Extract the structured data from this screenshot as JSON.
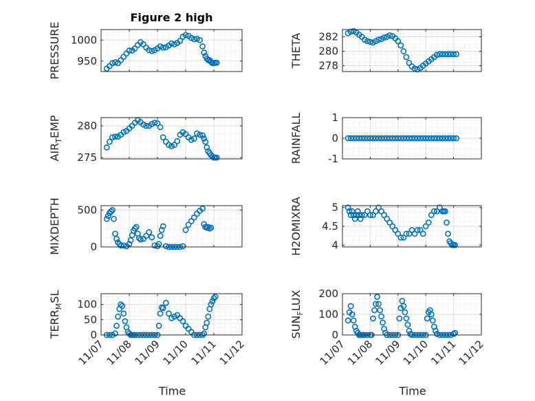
{
  "chart_data": {
    "type": "scatter",
    "title": "Figure 2 high",
    "xlabel": "Time",
    "x_ticks": [
      "11/07",
      "11/08",
      "11/09",
      "11/10",
      "11/11",
      "11/12"
    ],
    "marker": "open-circle",
    "marker_color": "#0072BD",
    "grid": true,
    "minor_grid": true,
    "panels": [
      {
        "id": "pressure",
        "ylabel": "PRESSURE",
        "ylim": [
          925,
          1025
        ],
        "yticks": [
          950,
          1000
        ],
        "yticklabels": [
          "950",
          "1000"
        ],
        "x": [
          0.2,
          0.3,
          0.4,
          0.5,
          0.6,
          0.7,
          0.8,
          0.9,
          1.0,
          1.1,
          1.2,
          1.3,
          1.4,
          1.5,
          1.6,
          1.7,
          1.8,
          1.9,
          2.0,
          2.1,
          2.2,
          2.3,
          2.4,
          2.5,
          2.6,
          2.7,
          2.8,
          2.9,
          3.0,
          3.1,
          3.2,
          3.3,
          3.4,
          3.5,
          3.6,
          3.65,
          3.7,
          3.75,
          3.8,
          3.85,
          3.9,
          3.95,
          4.0,
          4.05,
          4.1
        ],
        "y": [
          932,
          938,
          945,
          947,
          945,
          952,
          960,
          968,
          975,
          975,
          980,
          988,
          995,
          990,
          982,
          976,
          974,
          976,
          980,
          985,
          982,
          983,
          987,
          992,
          990,
          993,
          998,
          1008,
          1012,
          1010,
          1005,
          1002,
          1003,
          1000,
          985,
          970,
          962,
          956,
          952,
          952,
          948,
          945,
          945,
          946,
          946
        ]
      },
      {
        "id": "theta",
        "ylabel": "THETA",
        "ylim": [
          277.2,
          283.0
        ],
        "yticks": [
          278,
          280,
          282
        ],
        "yticklabels": [
          "278",
          "280",
          "282"
        ],
        "x": [
          0.2,
          0.3,
          0.4,
          0.5,
          0.6,
          0.7,
          0.8,
          0.9,
          1.0,
          1.1,
          1.2,
          1.3,
          1.4,
          1.5,
          1.6,
          1.7,
          1.8,
          1.9,
          2.0,
          2.1,
          2.2,
          2.3,
          2.4,
          2.5,
          2.6,
          2.7,
          2.8,
          2.9,
          3.0,
          3.1,
          3.2,
          3.3,
          3.4,
          3.5,
          3.6,
          3.7,
          3.8,
          3.9,
          4.0,
          4.1
        ],
        "y": [
          282.5,
          282.7,
          282.8,
          282.6,
          282.3,
          282.0,
          281.6,
          281.4,
          281.3,
          281.2,
          281.4,
          281.6,
          281.7,
          281.9,
          282.0,
          282.2,
          282.1,
          281.8,
          281.4,
          280.8,
          280.0,
          279.2,
          278.4,
          277.9,
          277.6,
          277.5,
          277.7,
          278.0,
          278.3,
          278.6,
          278.9,
          279.2,
          279.5,
          279.6,
          279.6,
          279.6,
          279.6,
          279.6,
          279.6,
          279.6
        ]
      },
      {
        "id": "air_temp",
        "ylabel": "AIR",
        "ylabel_sub": "T",
        "ylabel_rest": "EMP",
        "ylim": [
          274.8,
          281.3
        ],
        "yticks": [
          275,
          280
        ],
        "yticklabels": [
          "275",
          "280"
        ],
        "x": [
          0.2,
          0.3,
          0.4,
          0.5,
          0.6,
          0.7,
          0.8,
          0.9,
          1.0,
          1.1,
          1.2,
          1.3,
          1.4,
          1.5,
          1.6,
          1.7,
          1.8,
          1.9,
          2.0,
          2.1,
          2.2,
          2.3,
          2.4,
          2.5,
          2.6,
          2.7,
          2.8,
          2.9,
          3.0,
          3.1,
          3.2,
          3.3,
          3.4,
          3.5,
          3.6,
          3.65,
          3.7,
          3.75,
          3.8,
          3.85,
          3.9,
          3.95,
          4.0,
          4.05,
          4.1
        ],
        "y": [
          276.6,
          277.5,
          278.2,
          278.3,
          278.3,
          278.6,
          279.0,
          279.2,
          279.6,
          280.0,
          280.5,
          280.9,
          280.6,
          280.2,
          280.0,
          280.0,
          280.3,
          280.5,
          280.4,
          279.8,
          278.2,
          277.5,
          277.0,
          276.8,
          277.0,
          277.6,
          278.6,
          279.0,
          278.7,
          278.2,
          277.8,
          278.0,
          278.8,
          278.6,
          278.5,
          278.0,
          277.5,
          276.6,
          276.0,
          275.7,
          275.4,
          275.2,
          275.0,
          275.0,
          275.0
        ]
      },
      {
        "id": "rainfall",
        "ylabel": "RAINFALL",
        "ylim": [
          -1,
          1
        ],
        "yticks": [
          -1,
          0,
          1
        ],
        "yticklabels": [
          "-1",
          "0",
          "1"
        ],
        "x": [
          0.2,
          0.3,
          0.4,
          0.5,
          0.6,
          0.7,
          0.8,
          0.9,
          1.0,
          1.1,
          1.2,
          1.3,
          1.4,
          1.5,
          1.6,
          1.7,
          1.8,
          1.9,
          2.0,
          2.1,
          2.2,
          2.3,
          2.4,
          2.5,
          2.6,
          2.7,
          2.8,
          2.9,
          3.0,
          3.1,
          3.2,
          3.3,
          3.4,
          3.5,
          3.6,
          3.7,
          3.8,
          3.9,
          4.0,
          4.1
        ],
        "y": [
          0,
          0,
          0,
          0,
          0,
          0,
          0,
          0,
          0,
          0,
          0,
          0,
          0,
          0,
          0,
          0,
          0,
          0,
          0,
          0,
          0,
          0,
          0,
          0,
          0,
          0,
          0,
          0,
          0,
          0,
          0,
          0,
          0,
          0,
          0,
          0,
          0,
          0,
          0,
          0
        ]
      },
      {
        "id": "mixdepth",
        "ylabel": "MIXDEPTH",
        "ylim": [
          0,
          560
        ],
        "yticks": [
          0,
          500
        ],
        "yticklabels": [
          "0",
          "500"
        ],
        "x": [
          0.2,
          0.25,
          0.3,
          0.35,
          0.4,
          0.45,
          0.5,
          0.55,
          0.6,
          0.65,
          0.7,
          0.8,
          0.9,
          1.0,
          1.05,
          1.1,
          1.15,
          1.2,
          1.25,
          1.3,
          1.35,
          1.4,
          1.5,
          1.6,
          1.7,
          1.8,
          1.9,
          2.0,
          2.05,
          2.1,
          2.15,
          2.2,
          2.3,
          2.4,
          2.5,
          2.6,
          2.7,
          2.8,
          2.9,
          3.0,
          3.1,
          3.2,
          3.3,
          3.4,
          3.5,
          3.6,
          3.65,
          3.7,
          3.75,
          3.8,
          3.85,
          3.9
        ],
        "y": [
          380,
          420,
          460,
          480,
          500,
          380,
          180,
          110,
          60,
          40,
          20,
          20,
          10,
          40,
          90,
          160,
          220,
          250,
          270,
          180,
          120,
          100,
          110,
          150,
          200,
          130,
          20,
          10,
          40,
          150,
          230,
          280,
          10,
          0,
          0,
          0,
          0,
          0,
          10,
          230,
          300,
          350,
          400,
          450,
          490,
          520,
          310,
          270,
          260,
          270,
          250,
          260
        ]
      },
      {
        "id": "h2omixra",
        "ylabel": "H2OMIXRA",
        "ylim": [
          3.95,
          5.05
        ],
        "yticks": [
          4,
          4.5,
          5
        ],
        "yticklabels": [
          "4",
          "4.5",
          "5"
        ],
        "x": [
          0.2,
          0.25,
          0.3,
          0.35,
          0.4,
          0.45,
          0.5,
          0.55,
          0.6,
          0.65,
          0.7,
          0.8,
          0.9,
          1.0,
          1.1,
          1.2,
          1.3,
          1.4,
          1.5,
          1.6,
          1.7,
          1.8,
          1.9,
          2.0,
          2.1,
          2.2,
          2.3,
          2.4,
          2.5,
          2.6,
          2.7,
          2.8,
          2.9,
          3.0,
          3.1,
          3.2,
          3.3,
          3.4,
          3.5,
          3.6,
          3.65,
          3.7,
          3.75,
          3.8,
          3.85,
          3.9,
          3.95,
          4.0,
          4.05
        ],
        "y": [
          5.0,
          4.9,
          4.8,
          4.9,
          4.8,
          4.7,
          4.8,
          4.9,
          4.8,
          4.7,
          4.8,
          4.8,
          4.9,
          4.8,
          4.8,
          4.9,
          5.0,
          4.9,
          4.8,
          4.7,
          4.6,
          4.5,
          4.4,
          4.3,
          4.2,
          4.2,
          4.3,
          4.3,
          4.4,
          4.3,
          4.4,
          4.4,
          4.3,
          4.5,
          4.6,
          4.8,
          4.9,
          4.9,
          5.0,
          4.9,
          4.9,
          4.9,
          4.6,
          4.3,
          4.1,
          4.05,
          4.0,
          4.0,
          4.0
        ]
      },
      {
        "id": "terr_msl",
        "ylabel": "TERR",
        "ylabel_sub": "M",
        "ylabel_rest": "SL",
        "ylim": [
          0,
          135
        ],
        "yticks": [
          0,
          50,
          100
        ],
        "yticklabels": [
          "0",
          "50",
          "100"
        ],
        "x": [
          0.2,
          0.3,
          0.4,
          0.5,
          0.55,
          0.6,
          0.65,
          0.7,
          0.75,
          0.8,
          0.85,
          0.9,
          0.95,
          1.0,
          1.05,
          1.1,
          1.15,
          1.2,
          1.3,
          1.4,
          1.5,
          1.6,
          1.7,
          1.8,
          1.9,
          2.0,
          2.05,
          2.1,
          2.15,
          2.2,
          2.3,
          2.4,
          2.5,
          2.6,
          2.7,
          2.8,
          2.9,
          3.0,
          3.1,
          3.2,
          3.3,
          3.4,
          3.5,
          3.6,
          3.65,
          3.7,
          3.75,
          3.8,
          3.85,
          3.9,
          3.95,
          4.0,
          4.05
        ],
        "y": [
          0,
          0,
          0,
          5,
          30,
          60,
          85,
          100,
          95,
          70,
          45,
          25,
          10,
          5,
          0,
          0,
          0,
          0,
          0,
          0,
          0,
          0,
          0,
          0,
          0,
          0,
          30,
          70,
          90,
          88,
          105,
          70,
          55,
          60,
          65,
          55,
          45,
          30,
          20,
          10,
          0,
          0,
          0,
          0,
          5,
          25,
          40,
          60,
          85,
          100,
          110,
          120,
          125
        ]
      },
      {
        "id": "sun_flux",
        "ylabel": "SUN",
        "ylabel_sub": "F",
        "ylabel_rest": "LUX",
        "ylim": [
          0,
          200
        ],
        "yticks": [
          0,
          100,
          200
        ],
        "yticklabels": [
          "0",
          "100",
          "200"
        ],
        "x": [
          0.2,
          0.25,
          0.3,
          0.35,
          0.4,
          0.45,
          0.5,
          0.55,
          0.6,
          0.65,
          0.7,
          0.75,
          0.8,
          0.9,
          1.0,
          1.05,
          1.1,
          1.15,
          1.2,
          1.25,
          1.3,
          1.35,
          1.4,
          1.45,
          1.5,
          1.55,
          1.6,
          1.7,
          1.8,
          1.9,
          2.0,
          2.05,
          2.1,
          2.15,
          2.2,
          2.25,
          2.3,
          2.35,
          2.4,
          2.45,
          2.5,
          2.6,
          2.7,
          2.8,
          2.9,
          3.0,
          3.05,
          3.1,
          3.15,
          3.2,
          3.25,
          3.3,
          3.35,
          3.4,
          3.5,
          3.6,
          3.7,
          3.8,
          3.9,
          4.0,
          4.05
        ],
        "y": [
          70,
          110,
          140,
          100,
          70,
          40,
          20,
          10,
          0,
          0,
          0,
          0,
          0,
          0,
          0,
          0,
          80,
          120,
          150,
          185,
          150,
          120,
          90,
          60,
          30,
          10,
          0,
          0,
          0,
          0,
          0,
          80,
          130,
          165,
          140,
          110,
          80,
          50,
          20,
          5,
          0,
          0,
          0,
          0,
          0,
          0,
          80,
          110,
          120,
          100,
          70,
          40,
          20,
          5,
          0,
          0,
          0,
          0,
          0,
          5,
          10
        ]
      }
    ]
  }
}
